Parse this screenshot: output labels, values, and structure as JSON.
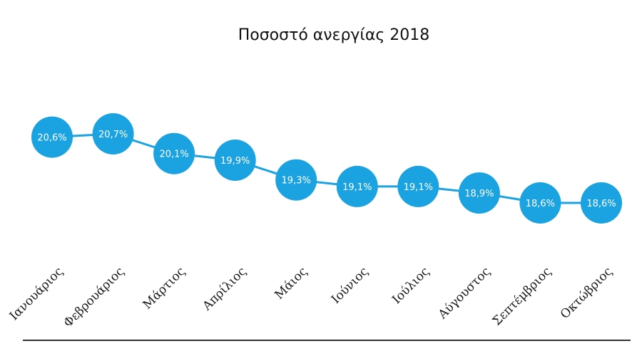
{
  "chart_data": {
    "type": "line",
    "title": "Ποσοστό ανεργίας 2018",
    "categories": [
      "Ιανουάριος",
      "Φεβρουάριος",
      "Μάρτιος",
      "Απρίλιος",
      "Μάιος",
      "Ιούνιος",
      "Ιούλιος",
      "Αύγουστος",
      "Σεπτέμβριος",
      "Οκτώβριος"
    ],
    "values": [
      20.6,
      20.7,
      20.1,
      19.9,
      19.3,
      19.1,
      19.1,
      18.9,
      18.6,
      18.6
    ],
    "value_labels": [
      "20,6%",
      "20,7%",
      "20,1%",
      "19,9%",
      "19,3%",
      "19,1%",
      "19,1%",
      "18,9%",
      "18,6%",
      "18,6%"
    ],
    "xlabel": "",
    "ylabel": "",
    "grid": false,
    "legend": "none",
    "colors": {
      "series": "#1aa3e0",
      "axis": "#333333"
    }
  }
}
